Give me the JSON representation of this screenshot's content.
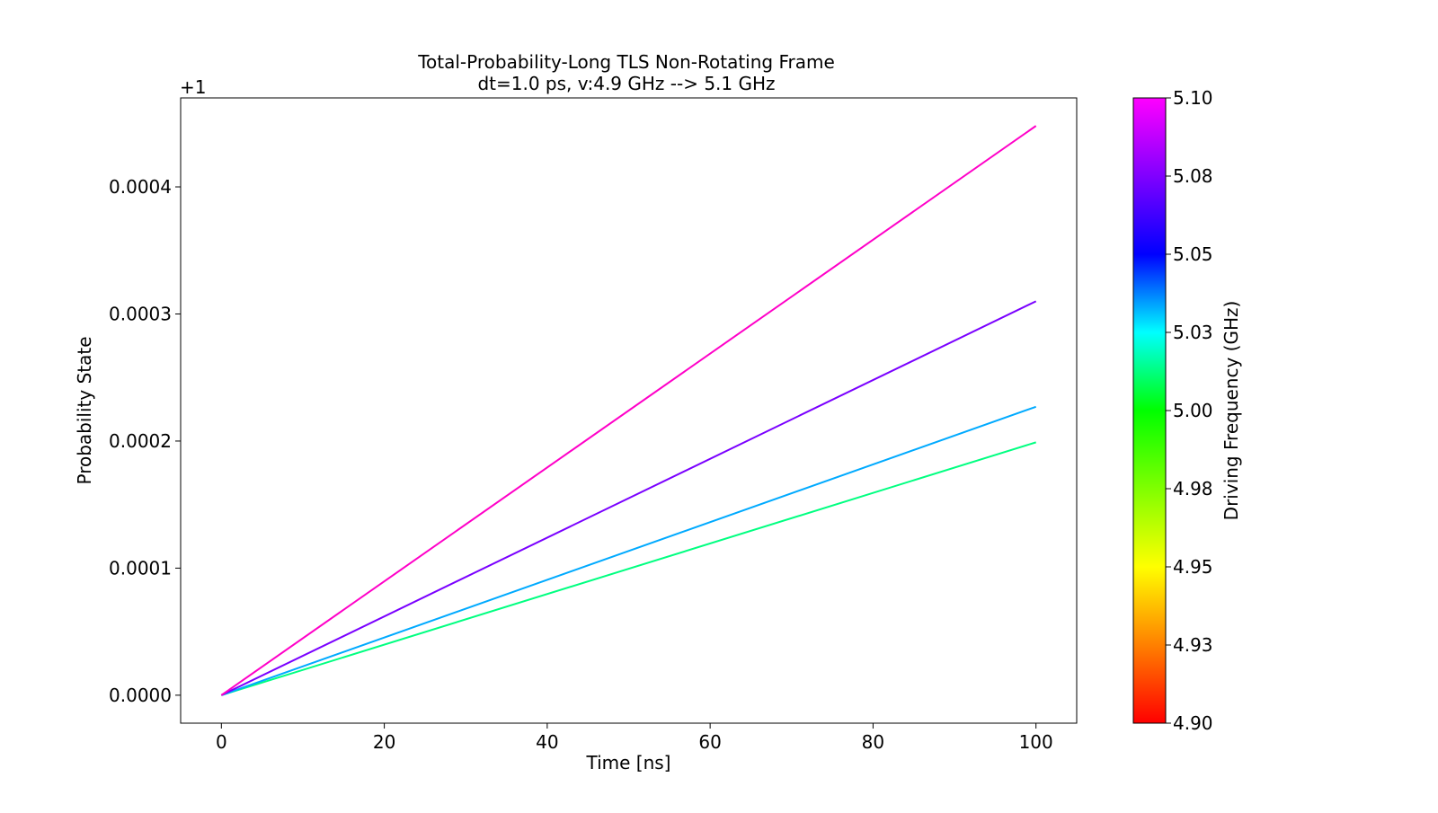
{
  "chart_data": {
    "type": "line",
    "title": "Total-Probability-Long TLS Non-Rotating Frame",
    "subtitle": "dt=1.0 ps, v:4.9 GHz --> 5.1 GHz",
    "xlabel": "Time [ns]",
    "ylabel": "Probability State",
    "y_offset_label": "+1",
    "xlim": [
      -5,
      105
    ],
    "ylim": [
      -2.2e-05,
      0.00047
    ],
    "xticks": [
      0,
      20,
      40,
      60,
      80,
      100
    ],
    "xtick_labels": [
      "0",
      "20",
      "40",
      "60",
      "80",
      "100"
    ],
    "yticks": [
      0.0,
      0.0001,
      0.0002,
      0.0003,
      0.0004
    ],
    "ytick_labels": [
      "0.0000",
      "0.0001",
      "0.0002",
      "0.0003",
      "0.0004"
    ],
    "grid": false,
    "series": [
      {
        "x": [
          0,
          100
        ],
        "y": [
          0.0,
          0.000199
        ],
        "color": "#00ff80",
        "driving_frequency": 5.0
      },
      {
        "x": [
          0,
          100
        ],
        "y": [
          0.0,
          0.000227
        ],
        "color": "#00aaff",
        "driving_frequency": 5.033
      },
      {
        "x": [
          0,
          100
        ],
        "y": [
          0.0,
          0.00031
        ],
        "color": "#7a00ff",
        "driving_frequency": 5.067
      },
      {
        "x": [
          0,
          100
        ],
        "y": [
          0.0,
          0.000448
        ],
        "color": "#ff00c8",
        "driving_frequency": 5.1
      }
    ],
    "colorbar": {
      "label": "Driving Frequency (GHz)",
      "range": [
        4.9,
        5.1
      ],
      "ticks": [
        4.9,
        4.925,
        4.95,
        4.975,
        5.0,
        5.025,
        5.05,
        5.075,
        5.1
      ],
      "tick_labels": [
        "4.90",
        "4.93",
        "4.95",
        "4.98",
        "5.00",
        "5.03",
        "5.05",
        "5.08",
        "5.10"
      ],
      "colors": [
        "#ff0000",
        "#ff8000",
        "#ffff00",
        "#80ff00",
        "#00ff00",
        "#00ffff",
        "#0000ff",
        "#8000ff",
        "#ff00ff"
      ]
    }
  }
}
